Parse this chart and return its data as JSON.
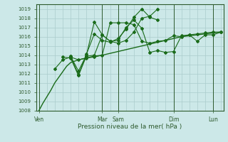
{
  "xlabel": "Pression niveau de la mer( hPa )",
  "background_color": "#cce8e8",
  "grid_color": "#aacccc",
  "line_color": "#1a6b1a",
  "spine_color": "#2d5a2d",
  "ylim": [
    1008,
    1019.5
  ],
  "yticks": [
    1008,
    1009,
    1010,
    1011,
    1012,
    1013,
    1014,
    1015,
    1016,
    1017,
    1018,
    1019
  ],
  "xlim": [
    -0.3,
    23.3
  ],
  "xtick_labels": [
    "Ven",
    "Mar",
    "Sam",
    "Dim",
    "Lun"
  ],
  "xtick_positions": [
    0,
    8,
    10,
    17,
    22
  ],
  "x_vlines": [
    0,
    8,
    10,
    17,
    22
  ],
  "series": [
    {
      "x": [
        0,
        0.5,
        1,
        1.5,
        2,
        2.5,
        3,
        3.5,
        4,
        5,
        6,
        7,
        8,
        9,
        10,
        11,
        12,
        13,
        14,
        15,
        16,
        17,
        18,
        19,
        20,
        21,
        22,
        23
      ],
      "y": [
        1008.0,
        1008.8,
        1009.5,
        1010.2,
        1011.0,
        1011.6,
        1012.2,
        1012.8,
        1013.2,
        1013.5,
        1013.7,
        1013.9,
        1014.0,
        1014.2,
        1014.4,
        1014.6,
        1014.8,
        1015.0,
        1015.2,
        1015.4,
        1015.6,
        1015.8,
        1016.0,
        1016.1,
        1016.2,
        1016.3,
        1016.4,
        1016.5
      ],
      "marker": null,
      "lw": 1.0
    },
    {
      "x": [
        2,
        3,
        4,
        5,
        6,
        7,
        8,
        9,
        10,
        11,
        12,
        13,
        14,
        15,
        16,
        17,
        18,
        19,
        20,
        21,
        22,
        23
      ],
      "y": [
        1012.5,
        1013.5,
        1013.8,
        1013.5,
        1013.7,
        1013.8,
        1014.0,
        1017.5,
        1017.5,
        1017.5,
        1017.3,
        1015.5,
        1015.3,
        1015.5,
        1015.6,
        1016.1,
        1016.0,
        1016.2,
        1015.5,
        1016.2,
        1016.2,
        1016.5
      ],
      "marker": "D",
      "markersize": 2.0,
      "lw": 0.8
    },
    {
      "x": [
        3,
        4,
        5,
        6,
        7,
        8,
        9,
        10,
        11,
        12,
        13,
        14,
        15
      ],
      "y": [
        1013.8,
        1013.7,
        1011.8,
        1013.9,
        1014.0,
        1016.2,
        1015.5,
        1015.3,
        1015.6,
        1016.5,
        1018.0,
        1018.2,
        1019.0
      ],
      "marker": "D",
      "markersize": 2.0,
      "lw": 0.8
    },
    {
      "x": [
        4,
        5,
        6,
        7,
        8,
        9,
        10,
        11,
        12,
        13,
        14,
        15
      ],
      "y": [
        1013.9,
        1011.9,
        1014.1,
        1016.3,
        1015.6,
        1015.4,
        1015.8,
        1016.8,
        1018.1,
        1019.0,
        1018.1,
        1017.8
      ],
      "marker": "D",
      "markersize": 2.0,
      "lw": 0.8
    },
    {
      "x": [
        4,
        5,
        6,
        7,
        8,
        9,
        10,
        11,
        12,
        13,
        14,
        15,
        16,
        17,
        18,
        19,
        20,
        21,
        22,
        23
      ],
      "y": [
        1013.9,
        1012.3,
        1014.0,
        1017.6,
        1016.2,
        1015.5,
        1015.6,
        1017.0,
        1017.8,
        1016.9,
        1014.3,
        1014.5,
        1014.3,
        1014.4,
        1016.1,
        1016.2,
        1016.3,
        1016.4,
        1016.5,
        1016.5
      ],
      "marker": "D",
      "markersize": 2.0,
      "lw": 0.8
    }
  ]
}
